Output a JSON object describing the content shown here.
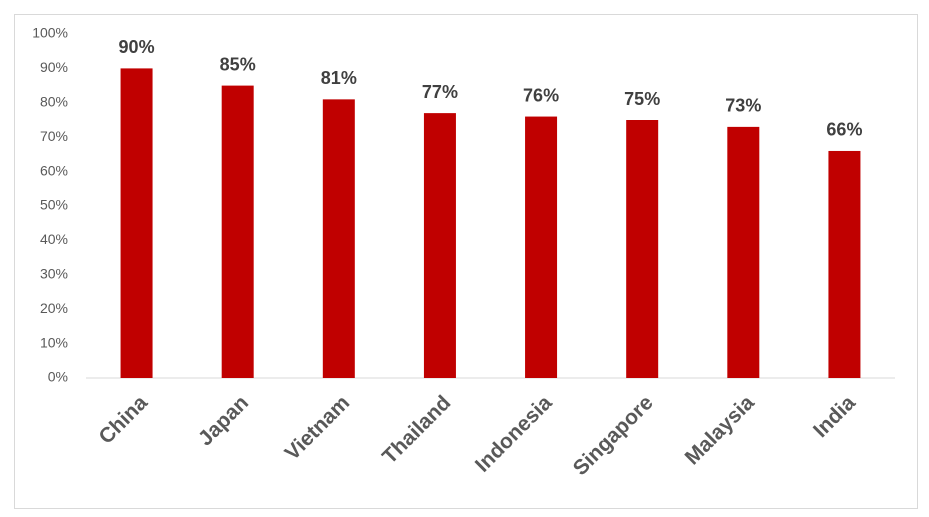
{
  "chart_data": {
    "type": "bar",
    "categories": [
      "China",
      "Japan",
      "Vietnam",
      "Thailand",
      "Indonesia",
      "Singapore",
      "Malaysia",
      "India"
    ],
    "values": [
      90,
      85,
      81,
      77,
      76,
      75,
      73,
      66
    ],
    "value_labels": [
      "90%",
      "85%",
      "81%",
      "77%",
      "76%",
      "75%",
      "73%",
      "66%"
    ],
    "color": "#c00000",
    "ylim": [
      0,
      100
    ],
    "yticks": [
      {
        "value": 0,
        "label": "0%"
      },
      {
        "value": 10,
        "label": "10%"
      },
      {
        "value": 20,
        "label": "20%"
      },
      {
        "value": 30,
        "label": "30%"
      },
      {
        "value": 40,
        "label": "40%"
      },
      {
        "value": 50,
        "label": "50%"
      },
      {
        "value": 60,
        "label": "60%"
      },
      {
        "value": 70,
        "label": "70%"
      },
      {
        "value": 80,
        "label": "80%"
      },
      {
        "value": 90,
        "label": "90%"
      },
      {
        "value": 100,
        "label": "100%"
      }
    ],
    "grid": false
  }
}
